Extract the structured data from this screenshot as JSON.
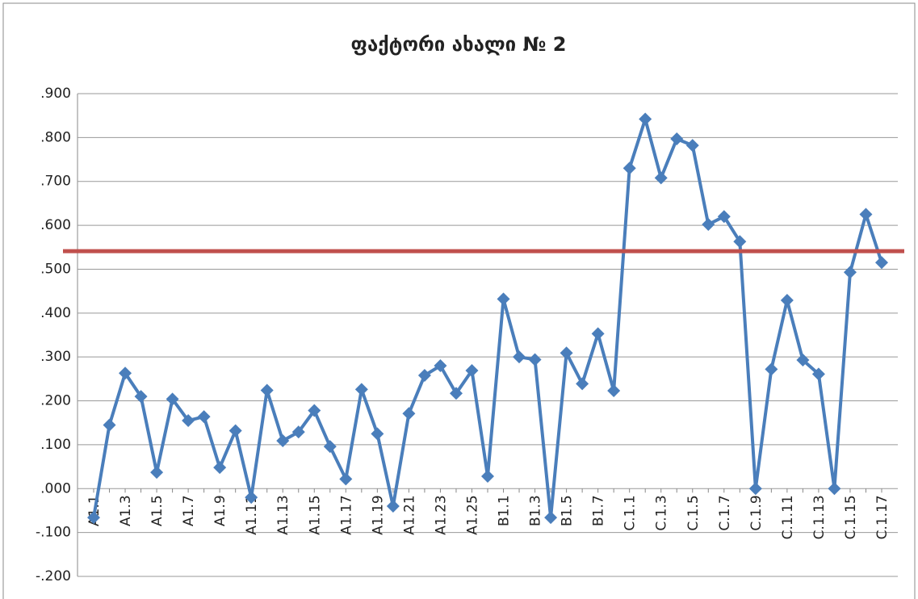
{
  "chart_data": {
    "type": "line",
    "title": "ფაქტორი ახალი № 2",
    "categories": [
      "A1.1",
      null,
      "A1.3",
      null,
      "A1.5",
      null,
      "A1.7",
      null,
      "A1.9",
      null,
      "A1.11",
      null,
      "A1.13",
      null,
      "A1.15",
      null,
      "A1.17",
      null,
      "A1.19",
      null,
      "A1.21",
      null,
      "A1.23",
      null,
      "A1.25",
      null,
      "B1.1",
      null,
      "B1.3",
      null,
      "B1.5",
      null,
      "B1.7",
      null,
      "C.1.1",
      null,
      "C.1.3",
      null,
      "C.1.5",
      null,
      "C.1.7",
      null,
      "C.1.9",
      null,
      "C.1.11",
      null,
      "C.1.13",
      null,
      "C.1.15",
      null,
      "C.1.17"
    ],
    "series": [
      {
        "color": "#4a7ebb",
        "values": [
          -0.066,
          0.145,
          0.263,
          0.21,
          0.037,
          0.204,
          0.155,
          0.164,
          0.048,
          0.132,
          -0.02,
          0.224,
          0.109,
          0.129,
          0.178,
          0.096,
          0.022,
          0.226,
          0.125,
          -0.04,
          0.171,
          0.258,
          0.28,
          0.217,
          0.269,
          0.028,
          0.432,
          0.3,
          0.294,
          -0.066,
          0.309,
          0.239,
          0.353,
          0.223,
          0.73,
          0.842,
          0.708,
          0.797,
          0.782,
          0.602,
          0.62,
          0.563,
          0.0,
          0.272,
          0.429,
          0.293,
          0.261,
          0.0,
          0.493,
          0.625,
          0.515
        ]
      }
    ],
    "ylim": [
      -0.2,
      0.9
    ],
    "yticks": [
      {
        "value": -0.2,
        "label": "-.200"
      },
      {
        "value": -0.1,
        "label": "-.100"
      },
      {
        "value": 0,
        "label": ".000"
      },
      {
        "value": 0.1,
        "label": ".100"
      },
      {
        "value": 0.2,
        "label": ".200"
      },
      {
        "value": 0.3,
        "label": ".300"
      },
      {
        "value": 0.4,
        "label": ".400"
      },
      {
        "value": 0.5,
        "label": ".500"
      },
      {
        "value": 0.6,
        "label": ".600"
      },
      {
        "value": 0.7,
        "label": ".700"
      },
      {
        "value": 0.8,
        "label": ".800"
      },
      {
        "value": 0.9,
        "label": ".900"
      }
    ],
    "grid": true,
    "threshold": 0.541,
    "threshold_color": "#c0504d"
  }
}
